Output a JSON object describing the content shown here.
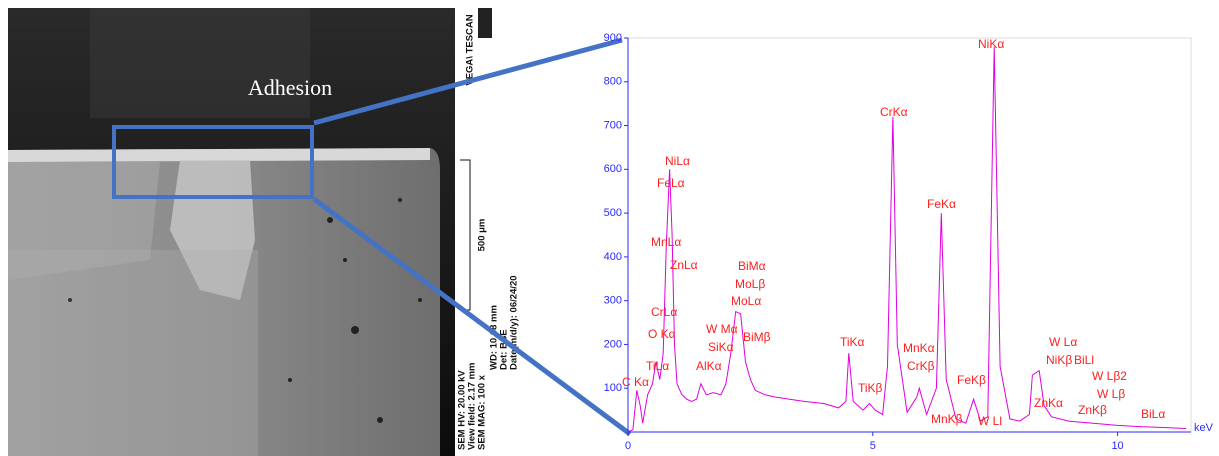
{
  "sem_image": {
    "annotation": "Adhesion",
    "vendor": "VEGA\\ TESCAN",
    "scale_bar": "500 μm",
    "info": [
      "SEM HV: 20.00 kV",
      "View field: 2.17 mm",
      "SEM MAG: 100 x",
      "WD: 10.68 mm",
      "Det: BSE",
      "Date(m/d/y): 06/24/20"
    ]
  },
  "chart_data": {
    "type": "line",
    "x_label": "keV",
    "color": "#e000e0",
    "x": [
      0,
      0.1,
      0.18,
      0.25,
      0.3,
      0.4,
      0.5,
      0.57,
      0.65,
      0.72,
      0.78,
      0.85,
      0.9,
      0.95,
      1.0,
      1.1,
      1.2,
      1.3,
      1.4,
      1.49,
      1.6,
      1.74,
      1.9,
      2.0,
      2.1,
      2.2,
      2.3,
      2.4,
      2.5,
      2.6,
      2.8,
      3.0,
      3.3,
      3.6,
      4.0,
      4.3,
      4.45,
      4.51,
      4.6,
      4.8,
      4.93,
      5.05,
      5.2,
      5.3,
      5.41,
      5.5,
      5.7,
      5.9,
      5.95,
      6.1,
      6.3,
      6.4,
      6.5,
      6.7,
      6.9,
      7.06,
      7.2,
      7.35,
      7.48,
      7.6,
      7.8,
      8.0,
      8.2,
      8.26,
      8.4,
      8.5,
      8.65,
      9.0,
      9.5,
      10.0,
      10.5,
      11.0,
      11.4
    ],
    "values": [
      0,
      5,
      95,
      60,
      20,
      85,
      110,
      160,
      120,
      180,
      420,
      600,
      450,
      200,
      110,
      85,
      75,
      70,
      75,
      110,
      85,
      90,
      85,
      110,
      180,
      275,
      270,
      160,
      120,
      95,
      85,
      80,
      75,
      70,
      65,
      55,
      70,
      180,
      70,
      50,
      65,
      50,
      40,
      150,
      720,
      200,
      45,
      80,
      100,
      40,
      100,
      500,
      120,
      30,
      20,
      75,
      25,
      35,
      880,
      150,
      30,
      25,
      40,
      130,
      140,
      60,
      35,
      25,
      20,
      15,
      12,
      10,
      8
    ],
    "xlim": [
      0,
      11.5
    ],
    "xticks": [
      0,
      5,
      10
    ],
    "ylim": [
      0,
      900
    ],
    "yticks": [
      100,
      200,
      300,
      400,
      500,
      600,
      700,
      800,
      900
    ],
    "annotations": [
      "NiLα",
      "FeLα",
      "MnLα",
      "ZnLα",
      "CrLα",
      "O Kα",
      "TiLα",
      "C Kα",
      "AlKα",
      "W Mα",
      "SiKα",
      "BiMα",
      "MoLβ",
      "MoLα",
      "BiMβ",
      "TiKα",
      "TiKβ",
      "CrKα",
      "MnKα",
      "CrKβ",
      "FeKα",
      "FeKβ",
      "MnKβ",
      "W Ll",
      "NiKα",
      "W Lα",
      "NiKβ",
      "ZnKα",
      "BiLl",
      "W Lβ2",
      "W Lβ",
      "ZnKβ",
      "BiLα"
    ]
  }
}
